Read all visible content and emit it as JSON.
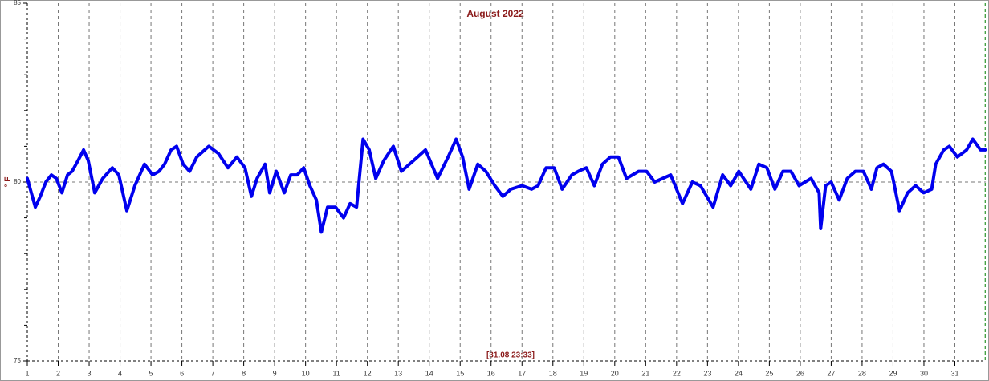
{
  "chart_data": {
    "type": "line",
    "title": "August 2022",
    "y_label": "° F",
    "annotation": "[31.08 23:33]",
    "x": [
      1.0,
      1.26,
      1.42,
      1.6,
      1.78,
      1.94,
      2.12,
      2.3,
      2.45,
      2.64,
      2.82,
      2.97,
      3.18,
      3.44,
      3.75,
      3.96,
      4.22,
      4.48,
      4.79,
      5.05,
      5.26,
      5.44,
      5.65,
      5.83,
      6.04,
      6.25,
      6.48,
      6.87,
      7.18,
      7.49,
      7.78,
      8.04,
      8.25,
      8.43,
      8.69,
      8.84,
      9.05,
      9.31,
      9.52,
      9.73,
      9.94,
      10.14,
      10.35,
      10.51,
      10.71,
      10.97,
      11.23,
      11.44,
      11.65,
      11.86,
      12.06,
      12.27,
      12.53,
      12.84,
      13.1,
      13.49,
      13.88,
      14.27,
      14.61,
      14.87,
      15.08,
      15.29,
      15.57,
      15.83,
      16.12,
      16.38,
      16.64,
      17.0,
      17.31,
      17.52,
      17.78,
      18.04,
      18.3,
      18.61,
      18.82,
      19.08,
      19.34,
      19.6,
      19.86,
      20.12,
      20.38,
      20.77,
      21.03,
      21.29,
      21.55,
      21.81,
      22.19,
      22.51,
      22.77,
      23.18,
      23.49,
      23.75,
      24.01,
      24.4,
      24.66,
      24.92,
      25.18,
      25.44,
      25.7,
      25.96,
      26.35,
      26.61,
      26.66,
      26.82,
      27.0,
      27.26,
      27.52,
      27.78,
      28.04,
      28.3,
      28.48,
      28.69,
      28.95,
      29.21,
      29.47,
      29.73,
      29.99,
      30.25,
      30.38,
      30.64,
      30.82,
      31.08,
      31.38,
      31.58,
      31.83,
      31.98
    ],
    "values": [
      80.1,
      79.3,
      79.6,
      80.0,
      80.2,
      80.1,
      79.7,
      80.2,
      80.3,
      80.6,
      80.9,
      80.6,
      79.7,
      80.1,
      80.4,
      80.2,
      79.2,
      79.9,
      80.5,
      80.2,
      80.3,
      80.5,
      80.9,
      81.0,
      80.5,
      80.3,
      80.7,
      81.0,
      80.8,
      80.4,
      80.7,
      80.4,
      79.6,
      80.1,
      80.5,
      79.7,
      80.3,
      79.7,
      80.2,
      80.2,
      80.4,
      79.9,
      79.5,
      78.6,
      79.3,
      79.3,
      79.0,
      79.4,
      79.3,
      81.2,
      80.9,
      80.1,
      80.6,
      81.0,
      80.3,
      80.6,
      80.9,
      80.1,
      80.7,
      81.2,
      80.7,
      79.8,
      80.5,
      80.3,
      79.9,
      79.6,
      79.8,
      79.9,
      79.8,
      79.9,
      80.4,
      80.4,
      79.8,
      80.2,
      80.3,
      80.4,
      79.9,
      80.5,
      80.7,
      80.7,
      80.1,
      80.3,
      80.3,
      80.0,
      80.1,
      80.2,
      79.4,
      80.0,
      79.9,
      79.3,
      80.2,
      79.9,
      80.3,
      79.8,
      80.5,
      80.4,
      79.8,
      80.3,
      80.3,
      79.9,
      80.1,
      79.7,
      78.7,
      79.9,
      80.0,
      79.5,
      80.1,
      80.3,
      80.3,
      79.8,
      80.4,
      80.5,
      80.3,
      79.2,
      79.7,
      79.9,
      79.7,
      79.8,
      80.5,
      80.9,
      81.0,
      80.7,
      80.9,
      81.2,
      80.9,
      80.9
    ],
    "color": "#0000ee",
    "xlim": [
      1,
      32
    ],
    "xticks": [
      1,
      2,
      3,
      4,
      5,
      6,
      7,
      8,
      9,
      10,
      11,
      12,
      13,
      14,
      15,
      16,
      17,
      18,
      19,
      20,
      21,
      22,
      23,
      24,
      25,
      26,
      27,
      28,
      29,
      30,
      31
    ],
    "ylim": [
      75,
      85
    ],
    "yticks": [
      75,
      80,
      85
    ],
    "y_minor_ticks": [
      76,
      77,
      78,
      79,
      81,
      82,
      83,
      84
    ],
    "reference_y": 80,
    "now_x": 31.98,
    "now_color": "#008000",
    "grid": true
  }
}
